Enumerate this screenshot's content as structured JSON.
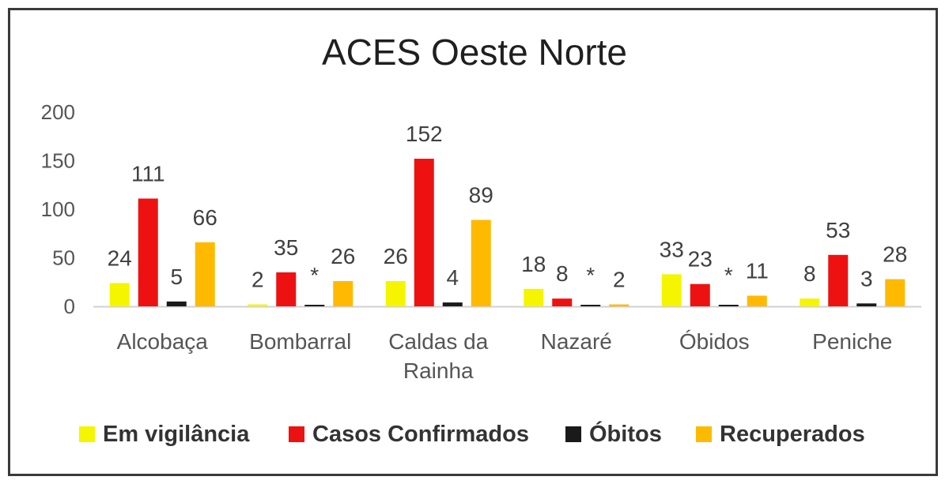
{
  "chart_data": {
    "type": "bar",
    "title": "ACES Oeste Norte",
    "xlabel": "",
    "ylabel": "",
    "ylim": [
      0,
      200
    ],
    "yticks": [
      0,
      50,
      100,
      150,
      200
    ],
    "grid": false,
    "legend_position": "bottom",
    "categories": [
      [
        "Alcobaça"
      ],
      [
        "Bombarral"
      ],
      [
        "Caldas da",
        "Rainha"
      ],
      [
        "Nazaré"
      ],
      [
        "Óbidos"
      ],
      [
        "Peniche"
      ]
    ],
    "series": [
      {
        "name": "Em vigilância",
        "color": "#f5f500",
        "values": [
          24,
          2,
          26,
          18,
          33,
          8
        ],
        "labels": [
          "24",
          "2",
          "26",
          "18",
          "33",
          "8"
        ]
      },
      {
        "name": "Casos Confirmados",
        "color": "#ee1111",
        "values": [
          111,
          35,
          152,
          8,
          23,
          53
        ],
        "labels": [
          "111",
          "35",
          "152",
          "8",
          "23",
          "53"
        ]
      },
      {
        "name": "Óbitos",
        "color": "#1a1a1a",
        "values": [
          5,
          0,
          4,
          1,
          0,
          3
        ],
        "labels": [
          "5",
          "*",
          "4",
          "*",
          "*",
          "3"
        ]
      },
      {
        "name": "Recuperados",
        "color": "#ffba00",
        "values": [
          66,
          26,
          89,
          2,
          11,
          28
        ],
        "labels": [
          "66",
          "26",
          "89",
          "2",
          "11",
          "28"
        ]
      }
    ]
  }
}
